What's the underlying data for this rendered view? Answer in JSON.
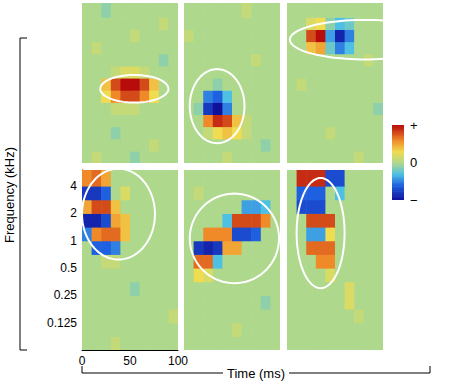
{
  "chart_data": {
    "type": "heatmap",
    "xlabel": "Time (ms)",
    "ylabel": "Frequency (kHz)",
    "log": "y",
    "xlim": [
      0,
      100
    ],
    "ylim": [
      0.0625,
      6
    ],
    "xticks": [
      0,
      50,
      100
    ],
    "yticks": [
      0.125,
      0.25,
      0.5,
      1,
      2,
      4
    ],
    "time_edges": [
      0,
      10,
      20,
      30,
      40,
      50,
      60,
      70,
      80,
      90,
      100
    ],
    "freq_edges": [
      0.0625,
      0.088,
      0.125,
      0.177,
      0.25,
      0.354,
      0.5,
      0.707,
      1,
      1.414,
      2,
      2.828,
      4,
      6
    ],
    "colorbar": {
      "range": [
        -1,
        1
      ],
      "ticks": [
        {
          "value": 1,
          "label": "+"
        },
        0,
        {
          "value": -1,
          "label": "−"
        }
      ]
    },
    "panels": [
      {
        "tick_labels": false,
        "ellipse": {
          "x": [
            19,
            90
          ],
          "y": [
            0.35,
            0.77
          ]
        },
        "cells": [
          [
            0,
            0.1,
            0,
            0,
            0,
            -0.1,
            0,
            0,
            0,
            0
          ],
          [
            0,
            0,
            0,
            0,
            0,
            0,
            0,
            0.1,
            0,
            0
          ],
          [
            0,
            0,
            0,
            -0.1,
            0,
            0,
            0,
            0,
            0,
            0
          ],
          [
            0,
            0,
            0,
            0,
            0,
            0,
            0,
            0,
            0,
            0
          ],
          [
            0,
            0,
            0,
            0.1,
            0.1,
            0.1,
            0,
            0,
            0,
            0
          ],
          [
            0,
            0,
            0.3,
            0.6,
            0.8,
            0.8,
            0.6,
            0.3,
            0,
            0
          ],
          [
            0,
            0,
            0.4,
            0.8,
            1,
            1,
            0.8,
            0.4,
            0,
            0
          ],
          [
            0,
            0,
            0,
            0.1,
            0.2,
            0.2,
            0.1,
            0,
            0,
            0
          ],
          [
            0,
            0,
            0,
            0,
            0,
            0,
            0,
            0,
            -0.1,
            0
          ],
          [
            0,
            0.1,
            0,
            0,
            0,
            0,
            0,
            0,
            0,
            0
          ],
          [
            0,
            0,
            0,
            0,
            0,
            0.1,
            0,
            0,
            0,
            0
          ],
          [
            0,
            0,
            0,
            0,
            0,
            0,
            0,
            0,
            0.1,
            0
          ],
          [
            0,
            0,
            -0.1,
            0,
            0,
            0,
            0,
            0,
            0,
            0
          ]
        ]
      },
      {
        "tick_labels": false,
        "ellipse": {
          "x": [
            6,
            63
          ],
          "y": [
            0.11,
            0.91
          ]
        },
        "cells": [
          [
            0,
            0,
            0,
            0,
            0.1,
            0,
            0,
            0,
            0,
            0
          ],
          [
            0,
            0,
            0,
            0,
            0,
            0,
            0,
            0,
            -0.1,
            0
          ],
          [
            0,
            0,
            0.1,
            0.3,
            0.4,
            0.3,
            0.1,
            0,
            0,
            0
          ],
          [
            0,
            0,
            0.6,
            0.9,
            0.8,
            0.4,
            0.1,
            0,
            0,
            0
          ],
          [
            0,
            -0.1,
            -0.8,
            -1,
            -0.5,
            0,
            0,
            0,
            0,
            0
          ],
          [
            0,
            0,
            -0.5,
            -0.6,
            -0.3,
            0,
            0,
            0,
            0,
            0
          ],
          [
            0,
            0,
            0,
            -0.1,
            0,
            0,
            0,
            0,
            0,
            0
          ],
          [
            0,
            0,
            0,
            0,
            0,
            0,
            0,
            0,
            0,
            0
          ],
          [
            0,
            0,
            0,
            0,
            0,
            0,
            0,
            0.1,
            0,
            0
          ],
          [
            0,
            0,
            0,
            0,
            0,
            0,
            0,
            0,
            0,
            0
          ],
          [
            0.1,
            0,
            0,
            0,
            0,
            0,
            0,
            0,
            0,
            0
          ],
          [
            0,
            0,
            0,
            0,
            0,
            0,
            0,
            0,
            0,
            0
          ],
          [
            0,
            0,
            0,
            0,
            0,
            0,
            0.1,
            0,
            0,
            0
          ]
        ]
      },
      {
        "tick_labels": false,
        "ellipse": {
          "x": [
            3,
            160
          ],
          "y": [
            1.2,
            3.7
          ]
        },
        "cells": [
          [
            0,
            0,
            0,
            0,
            0,
            0,
            0,
            0.1,
            0,
            0
          ],
          [
            0,
            0,
            0,
            0,
            0,
            0,
            0,
            0,
            0,
            0
          ],
          [
            0,
            0,
            0,
            0,
            0.1,
            0,
            0,
            0,
            0,
            0
          ],
          [
            0,
            0,
            0,
            0,
            0,
            0,
            0,
            0,
            0,
            0
          ],
          [
            0,
            0,
            0,
            0,
            0,
            0,
            0,
            0,
            0,
            -0.1
          ],
          [
            0,
            0,
            0,
            0,
            0,
            0,
            0,
            0,
            0,
            0
          ],
          [
            0,
            0.1,
            0,
            0,
            0,
            0,
            0,
            0,
            0,
            0
          ],
          [
            0,
            0,
            0,
            0,
            0,
            0,
            0,
            0,
            0,
            0
          ],
          [
            0,
            0,
            0,
            0,
            0,
            0,
            0,
            0,
            0.1,
            0
          ],
          [
            0,
            0,
            0.4,
            0.5,
            -0.2,
            -0.5,
            -0.3,
            0,
            0,
            0
          ],
          [
            0,
            0,
            0.8,
            1,
            -0.4,
            -0.9,
            -0.5,
            0,
            0,
            0
          ],
          [
            0,
            0,
            0.2,
            0.3,
            -0.1,
            -0.3,
            -0.2,
            0,
            0,
            0
          ],
          [
            0,
            0,
            0,
            0,
            0,
            0,
            0,
            0,
            0,
            0
          ]
        ]
      },
      {
        "tick_labels": true,
        "ellipse": {
          "x": [
            0,
            76
          ],
          "y": [
            0.62,
            6.2
          ]
        },
        "cells": [
          [
            0,
            0,
            0,
            0.1,
            0,
            0,
            0,
            0,
            0,
            0
          ],
          [
            0,
            0,
            0,
            0,
            0,
            0,
            0,
            0,
            0,
            0
          ],
          [
            0,
            0,
            0,
            0,
            0,
            0,
            0,
            0,
            0,
            0.1
          ],
          [
            0,
            0,
            0,
            0,
            0,
            0,
            0,
            0,
            0,
            0
          ],
          [
            0,
            0,
            0,
            0,
            0,
            -0.1,
            0,
            0,
            0,
            0
          ],
          [
            0,
            0,
            0,
            0,
            0,
            0,
            0,
            0,
            0,
            0
          ],
          [
            0,
            0,
            0.1,
            0.1,
            0,
            0,
            0,
            0,
            0,
            0
          ],
          [
            0,
            -0.6,
            -0.6,
            -0.5,
            0,
            0,
            0,
            0,
            0,
            0
          ],
          [
            -0.5,
            0.6,
            0.7,
            0.7,
            0.4,
            0,
            0,
            0,
            0,
            0
          ],
          [
            -0.9,
            -0.9,
            -0.7,
            0.5,
            0.4,
            0,
            0,
            0,
            0,
            0
          ],
          [
            0.5,
            0.8,
            0.8,
            0.4,
            0,
            0,
            0,
            0,
            0,
            0
          ],
          [
            -0.8,
            -0.8,
            -0.6,
            0,
            0.2,
            0,
            0,
            0,
            0,
            0
          ],
          [
            0.6,
            0.7,
            0.5,
            0,
            0,
            0,
            0,
            0,
            0,
            0
          ]
        ]
      },
      {
        "tick_labels": false,
        "ellipse": {
          "x": [
            6,
            99
          ],
          "y": [
            0.34,
            3.3
          ]
        },
        "cells": [
          [
            0,
            0,
            0,
            0,
            0,
            0,
            0,
            0,
            0,
            0
          ],
          [
            0,
            0,
            0,
            0,
            0,
            0.1,
            0,
            0,
            0,
            0
          ],
          [
            0,
            0,
            0,
            0,
            0,
            0,
            0,
            0,
            0,
            0
          ],
          [
            0,
            0,
            0,
            0,
            0,
            0,
            0,
            0,
            -0.1,
            0
          ],
          [
            0,
            0,
            0,
            0,
            0,
            0,
            0,
            0,
            0,
            0
          ],
          [
            0,
            0.3,
            0.2,
            0,
            0,
            0,
            0,
            0,
            0,
            0
          ],
          [
            0,
            0.7,
            0.7,
            -0.3,
            0,
            0,
            0,
            0,
            0,
            0
          ],
          [
            0,
            -0.8,
            -0.9,
            -0.8,
            0.5,
            0.5,
            0,
            0,
            0,
            0
          ],
          [
            0,
            0,
            0.6,
            0.6,
            0.6,
            -0.7,
            -0.7,
            -0.6,
            0,
            0
          ],
          [
            0,
            0,
            0,
            0,
            -0.3,
            0.8,
            0.8,
            0.8,
            0.6,
            0
          ],
          [
            0,
            0,
            0,
            0,
            0,
            0,
            -0.4,
            -0.4,
            -0.3,
            0
          ],
          [
            0,
            0.1,
            0,
            0,
            0,
            0,
            0,
            0,
            0,
            0
          ],
          [
            0,
            0,
            0,
            0,
            0,
            0,
            0,
            0,
            0,
            0
          ]
        ]
      },
      {
        "tick_labels": false,
        "ellipse": {
          "x": [
            10,
            60
          ],
          "y": [
            0.3,
            4.9
          ]
        },
        "cells": [
          [
            0,
            0,
            0,
            0,
            0,
            0,
            0,
            0,
            0,
            0
          ],
          [
            0,
            0,
            0,
            0,
            0,
            0,
            0,
            0,
            0,
            0
          ],
          [
            0,
            0,
            0,
            0,
            0,
            0,
            0,
            0.1,
            0,
            0
          ],
          [
            0,
            0,
            0,
            0,
            0,
            0,
            0.2,
            0,
            0,
            0
          ],
          [
            0,
            0,
            0,
            0,
            0,
            0,
            0.2,
            0,
            0,
            0
          ],
          [
            0,
            0,
            0,
            0,
            0.2,
            0,
            0,
            0,
            0,
            0
          ],
          [
            0,
            0,
            0,
            0.6,
            0.6,
            0,
            0,
            0,
            0,
            0
          ],
          [
            0,
            0,
            0.7,
            0.7,
            0.7,
            0,
            0,
            0,
            0,
            0
          ],
          [
            0,
            0,
            -0.4,
            -0.4,
            0.3,
            0,
            0,
            0,
            0,
            0
          ],
          [
            0,
            0,
            0.8,
            0.8,
            0.8,
            0,
            0,
            0,
            0,
            0
          ],
          [
            0,
            -0.7,
            -0.7,
            -0.7,
            0,
            0,
            0,
            0,
            0,
            0
          ],
          [
            0,
            -0.6,
            -0.6,
            -0.6,
            0,
            -0.3,
            0,
            0,
            0,
            0
          ],
          [
            0,
            0.9,
            0.9,
            0.9,
            -0.7,
            -0.7,
            0,
            0,
            0,
            0
          ]
        ]
      }
    ]
  }
}
